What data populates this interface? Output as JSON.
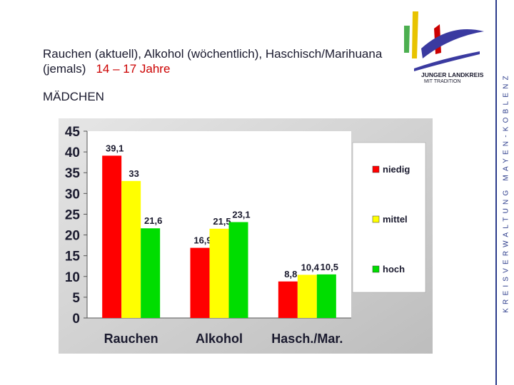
{
  "header": {
    "title_line1": "Rauchen (aktuell), Alkohol (wöchentlich), Haschisch/Marihuana",
    "title_line2": "(jemals)",
    "age_range": "14 – 17 Jahre",
    "subtitle": "MÄDCHEN"
  },
  "logo": {
    "icon": "county-logo-icon",
    "text_line1": "JUNGER LANDKREIS",
    "text_line2": "MIT TRADITION"
  },
  "sidebar": {
    "text": "KREISVERWALTUNG MAYEN-KOBLENZ"
  },
  "chart_data": {
    "type": "bar",
    "categories": [
      "Rauchen",
      "Alkohol",
      "Hasch./Mar."
    ],
    "series": [
      {
        "name": "niedig",
        "color": "#ff0000",
        "values": [
          39.1,
          16.9,
          8.8
        ],
        "labels": [
          "39,1",
          "16,9",
          "8,8"
        ]
      },
      {
        "name": "mittel",
        "color": "#ffff00",
        "values": [
          33,
          21.5,
          10.4
        ],
        "labels": [
          "33",
          "21,5",
          "10,4"
        ]
      },
      {
        "name": "hoch",
        "color": "#00dd00",
        "values": [
          21.6,
          23.1,
          10.5
        ],
        "labels": [
          "21,6",
          "23,1",
          "10,5"
        ]
      }
    ],
    "ylim": [
      0,
      45
    ],
    "yticks": [
      "0",
      "5",
      "10",
      "15",
      "20",
      "25",
      "30",
      "35",
      "40",
      "45"
    ],
    "grid": false,
    "legend_position": "right",
    "xlabel": "",
    "ylabel": ""
  }
}
